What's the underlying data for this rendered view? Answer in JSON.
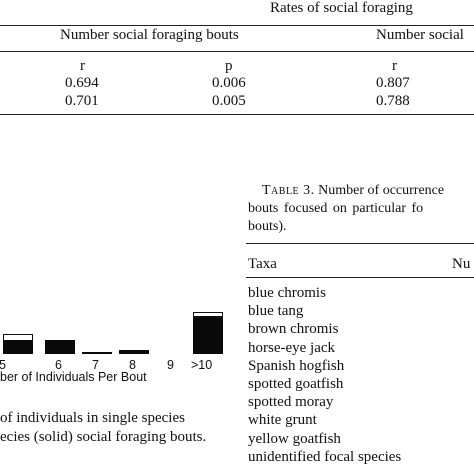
{
  "table_top": {
    "spanner": "Rates of social foraging",
    "col_group_1": "Number social foraging bouts",
    "col_group_2": "Number social",
    "stat_labels": [
      "r",
      "p",
      "r"
    ],
    "rows": [
      [
        "0.694",
        "0.006",
        "0.807"
      ],
      [
        "0.701",
        "0.005",
        "0.788"
      ]
    ]
  },
  "table3": {
    "caption_label": "Table 3.",
    "caption_line1": "Number of occurrence",
    "caption_line2": "bouts focused on particular fo",
    "caption_line3": "bouts).",
    "col_taxa": "Taxa",
    "col_num": "Nu",
    "taxa": [
      "blue chromis",
      "blue tang",
      "brown chromis",
      "horse-eye jack",
      "Spanish hogfish",
      "spotted goatfish",
      "spotted moray",
      "white grunt",
      "yellow goatfish",
      "unidentified focal species"
    ]
  },
  "chart_data": {
    "type": "bar",
    "xlabel": "ber of Individuals Per Bout",
    "categories": [
      "5",
      "6",
      "7",
      "8",
      "9",
      ">10"
    ],
    "series": [
      {
        "values": [
          20,
          12,
          0,
          2,
          0,
          42
        ]
      },
      {
        "values": [
          14,
          14,
          2,
          4,
          0,
          38
        ]
      }
    ],
    "caption_line1": "of individuals in single species",
    "caption_line2": "ecies (solid) social foraging bouts."
  }
}
